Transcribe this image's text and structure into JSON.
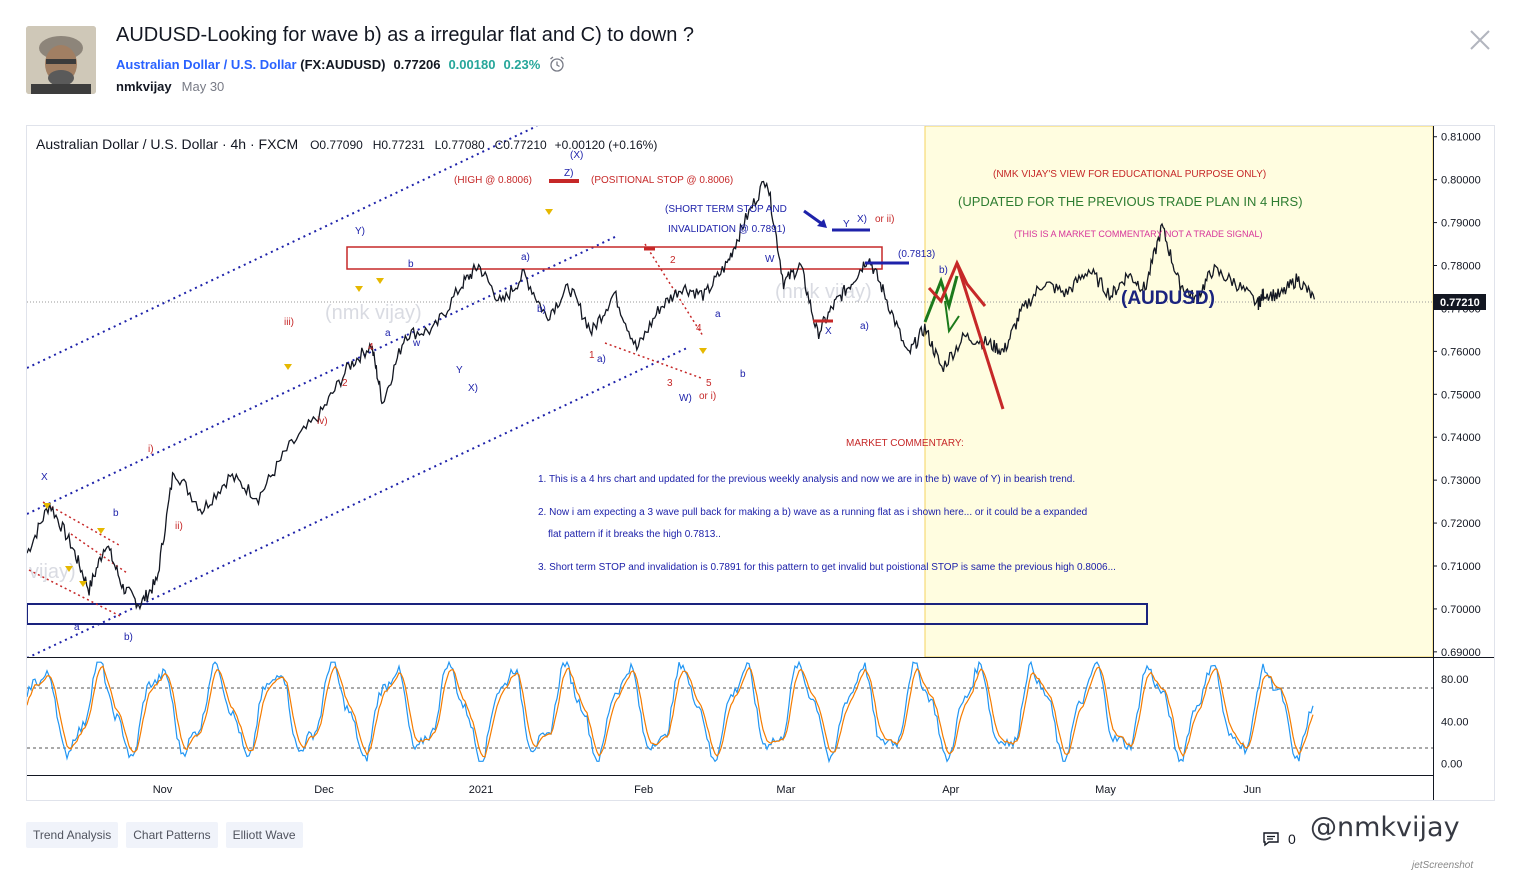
{
  "header": {
    "title": "AUDUSD-Looking for wave b) as a irregular flat and C) to down ?",
    "symbol_name": "Australian Dollar / U.S. Dollar",
    "symbol_code": "(FX:AUDUSD)",
    "price": "0.77206",
    "change": "0.00180",
    "change_pct": "0.23%",
    "author": "nmkvijay",
    "date": "May 30"
  },
  "chart_data": {
    "type": "line",
    "legend_text": "Australian Dollar / U.S. Dollar · 4h · FXCM",
    "ohlc": {
      "open": "0.77090",
      "high": "0.77231",
      "low": "0.77080",
      "close": "0.77210",
      "change": "+0.00120 (+0.16%)"
    },
    "last_price_label": "0.77210",
    "ylim": [
      0.6888,
      0.8125
    ],
    "price_ticks": [
      "0.81000",
      "0.80000",
      "0.79000",
      "0.78000",
      "0.77000",
      "0.76000",
      "0.75000",
      "0.74000",
      "0.73000",
      "0.72000",
      "0.71000",
      "0.70000",
      "0.69000"
    ],
    "time_ticks": [
      {
        "label": "Nov",
        "t": 0.12
      },
      {
        "label": "Dec",
        "t": 0.263
      },
      {
        "label": "2021",
        "t": 0.402
      },
      {
        "label": "Feb",
        "t": 0.546
      },
      {
        "label": "Mar",
        "t": 0.672
      },
      {
        "label": "Apr",
        "t": 0.818
      },
      {
        "label": "May",
        "t": 0.955
      },
      {
        "label": "Jun",
        "t": 1.085
      }
    ],
    "price_series": [
      {
        "t": 0.0,
        "p": 0.713
      },
      {
        "t": 0.02,
        "p": 0.7245
      },
      {
        "t": 0.04,
        "p": 0.7145
      },
      {
        "t": 0.055,
        "p": 0.7045
      },
      {
        "t": 0.07,
        "p": 0.7155
      },
      {
        "t": 0.085,
        "p": 0.705
      },
      {
        "t": 0.1,
        "p": 0.701
      },
      {
        "t": 0.115,
        "p": 0.7065
      },
      {
        "t": 0.13,
        "p": 0.7325
      },
      {
        "t": 0.155,
        "p": 0.723
      },
      {
        "t": 0.18,
        "p": 0.731
      },
      {
        "t": 0.205,
        "p": 0.726
      },
      {
        "t": 0.23,
        "p": 0.737
      },
      {
        "t": 0.26,
        "p": 0.7455
      },
      {
        "t": 0.285,
        "p": 0.7565
      },
      {
        "t": 0.305,
        "p": 0.7615
      },
      {
        "t": 0.315,
        "p": 0.748
      },
      {
        "t": 0.335,
        "p": 0.764
      },
      {
        "t": 0.36,
        "p": 0.765
      },
      {
        "t": 0.385,
        "p": 0.7755
      },
      {
        "t": 0.4,
        "p": 0.78
      },
      {
        "t": 0.42,
        "p": 0.771
      },
      {
        "t": 0.44,
        "p": 0.778
      },
      {
        "t": 0.46,
        "p": 0.768
      },
      {
        "t": 0.48,
        "p": 0.775
      },
      {
        "t": 0.5,
        "p": 0.7645
      },
      {
        "t": 0.52,
        "p": 0.7735
      },
      {
        "t": 0.54,
        "p": 0.7605
      },
      {
        "t": 0.56,
        "p": 0.77
      },
      {
        "t": 0.58,
        "p": 0.775
      },
      {
        "t": 0.6,
        "p": 0.773
      },
      {
        "t": 0.62,
        "p": 0.7805
      },
      {
        "t": 0.635,
        "p": 0.79
      },
      {
        "t": 0.655,
        "p": 0.8006
      },
      {
        "t": 0.67,
        "p": 0.776
      },
      {
        "t": 0.685,
        "p": 0.78
      },
      {
        "t": 0.7,
        "p": 0.764
      },
      {
        "t": 0.715,
        "p": 0.771
      },
      {
        "t": 0.73,
        "p": 0.776
      },
      {
        "t": 0.745,
        "p": 0.782
      },
      {
        "t": 0.76,
        "p": 0.773
      },
      {
        "t": 0.78,
        "p": 0.759
      },
      {
        "t": 0.795,
        "p": 0.7655
      },
      {
        "t": 0.81,
        "p": 0.756
      },
      {
        "t": 0.83,
        "p": 0.7635
      },
      {
        "t": 0.85,
        "p": 0.762
      },
      {
        "t": 0.865,
        "p": 0.76
      },
      {
        "t": 0.88,
        "p": 0.769
      },
      {
        "t": 0.9,
        "p": 0.776
      },
      {
        "t": 0.92,
        "p": 0.7735
      },
      {
        "t": 0.94,
        "p": 0.779
      },
      {
        "t": 0.96,
        "p": 0.773
      },
      {
        "t": 0.975,
        "p": 0.778
      },
      {
        "t": 0.99,
        "p": 0.7745
      },
      {
        "t": 1.005,
        "p": 0.7891
      },
      {
        "t": 1.02,
        "p": 0.776
      },
      {
        "t": 1.035,
        "p": 0.772
      },
      {
        "t": 1.05,
        "p": 0.779
      },
      {
        "t": 1.07,
        "p": 0.776
      },
      {
        "t": 1.09,
        "p": 0.771
      },
      {
        "t": 1.095,
        "p": 0.7735
      },
      {
        "t": 1.11,
        "p": 0.773
      },
      {
        "t": 1.125,
        "p": 0.777
      },
      {
        "t": 1.14,
        "p": 0.7721
      }
    ],
    "oscillator": {
      "levels": [
        "80.00",
        "40.00",
        "0.00"
      ],
      "range": [
        -10,
        100
      ],
      "dashed_levels": [
        80,
        20
      ]
    },
    "stops": {
      "high": "(HIGH @ 0.8006)",
      "positional": "(POSITIONAL STOP @ 0.8006)",
      "short_term": [
        "(SHORT TERM STOP AND",
        "INVALIDATION @ 0.7891)"
      ],
      "level": "(0.7813)"
    },
    "wave_labels": [
      "(X)",
      "Z)",
      "Y)",
      "b",
      "a",
      "4",
      "2",
      "iii)",
      "i)",
      "ii)",
      "iv)",
      "X",
      "b",
      "a",
      "b)",
      "w",
      "Y",
      "X)",
      "a)",
      "b)",
      "1",
      "a)",
      "2",
      "3",
      "5",
      "4",
      "W)",
      "or i)",
      "a",
      "b",
      "W",
      "Y",
      "X)",
      "or ii)",
      "X",
      "a)",
      "b)"
    ],
    "notes": {
      "view": "(NMK VIJAY'S VIEW FOR EDUCATIONAL PURPOSE ONLY)",
      "updated": "(UPDATED FOR THE PREVIOUS TRADE PLAN IN 4 HRS)",
      "disclaimer": "(THIS IS A MARKET COMMENTARY NOT A TRADE SIGNAL)",
      "ticker": "(AUDUSD)",
      "commentary_title": "MARKET COMMENTARY:",
      "point1": "1. This is a 4 hrs chart and updated for the previous weekly analysis and now we are in the b) wave of Y) in bearish trend.",
      "point2a": "2. Now i am expecting a 3 wave pull back for making a b) wave as a running flat as i shown here... or it could be a expanded",
      "point2b": "flat pattern if it breaks the high 0.7813..",
      "point3": "3. Short term STOP and invalidation is 0.7891 for this pattern to get invalid but poistional STOP is same the previous high 0.8006..."
    },
    "watermarks": [
      "(nmk vijay)",
      "(nmk vijay)",
      "vijay)"
    ]
  },
  "tags": [
    "Trend Analysis",
    "Chart Patterns",
    "Elliott Wave"
  ],
  "comments_count": "0",
  "watermark": "@nmkvijay",
  "watermark_sub": "jetScreenshot",
  "colors": {
    "accent": "#2962ff",
    "positive": "#26a69a",
    "annot_red": "#c62828",
    "annot_blue": "#1a237e",
    "forecast_green": "#1b7a1b",
    "forecast_red": "#c62828"
  }
}
